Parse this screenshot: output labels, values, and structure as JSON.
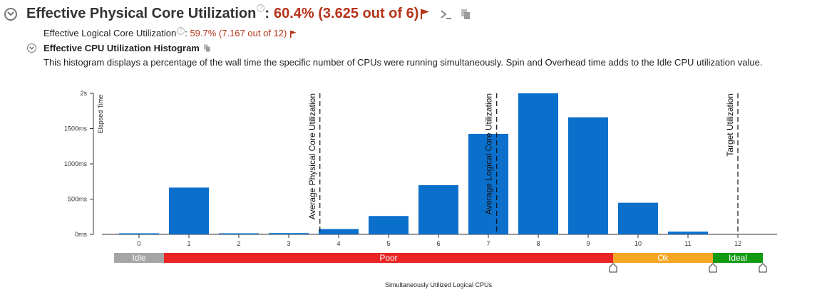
{
  "header": {
    "title": "Effective Physical Core Utilization",
    "colon": ":",
    "value": "60.4% (3.625 out of 6)"
  },
  "sub_metric": {
    "label": "Effective Logical Core Utilization",
    "colon": ":",
    "value": "59.7% (7.167 out of 12)"
  },
  "histogram": {
    "title": "Effective CPU Utilization Histogram",
    "description": "This histogram displays a percentage of the wall time the specific number of CPUs were running simultaneously. Spin and Overhead time adds to the Idle CPU utilization value."
  },
  "colors": {
    "bar": "#0b6fcc",
    "flag": "#b5341a",
    "idle": "#a5a5a5",
    "poor": "#e82424",
    "ok": "#f5a623",
    "ideal": "#139a13"
  },
  "icons": [
    "chevron-down-icon",
    "help-icon",
    "flag-icon",
    "command-line-icon",
    "copy-icon"
  ],
  "chart_data": {
    "type": "bar",
    "ylabel": "Elapsed Time",
    "xlabel": "Simultaneously Utilized Logical CPUs",
    "y_unit": "ms",
    "ylim": [
      0,
      2000
    ],
    "yticks": [
      {
        "value": 0,
        "label": "0ms"
      },
      {
        "value": 500,
        "label": "500ms"
      },
      {
        "value": 1000,
        "label": "1000ms"
      },
      {
        "value": 1500,
        "label": "1500ms"
      },
      {
        "value": 2000,
        "label": "2s"
      }
    ],
    "categories": [
      "0",
      "1",
      "2",
      "3",
      "4",
      "5",
      "6",
      "7",
      "8",
      "9",
      "10",
      "11",
      "12"
    ],
    "values": [
      8,
      663,
      8,
      18,
      75,
      260,
      698,
      1425,
      2000,
      1660,
      448,
      38,
      0
    ],
    "markers": [
      {
        "label": "Average Physical Core Utilization",
        "x": 3.625
      },
      {
        "label": "Average Logical Core Utilization",
        "x": 7.167
      },
      {
        "label": "Target Utilization",
        "x": 12
      }
    ],
    "zones": [
      {
        "label": "Idle",
        "from": -0.5,
        "to": 0.5
      },
      {
        "label": "Poor",
        "from": 0.5,
        "to": 9.5
      },
      {
        "label": "Ok",
        "from": 9.5,
        "to": 11.5
      },
      {
        "label": "Ideal",
        "from": 11.5,
        "to": 12.5
      }
    ],
    "zone_handles": [
      9.5,
      11.5,
      12.5
    ],
    "grid": false,
    "legend": "none"
  }
}
